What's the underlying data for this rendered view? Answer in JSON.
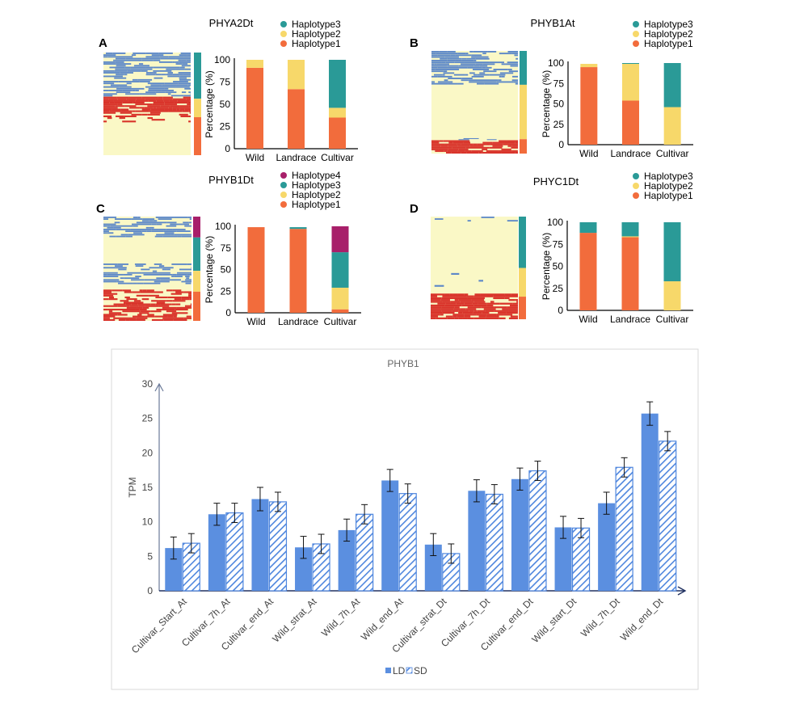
{
  "colors": {
    "haplotype1": "#f26c3c",
    "haplotype2": "#f7d86a",
    "haplotype3": "#2a9a97",
    "haplotype4": "#a81f6a",
    "heat_bg": "#faf8c6",
    "heat_blue": "#5b87c8",
    "heat_red": "#d9342b",
    "ld": "#5b8fe0",
    "sd_stroke": "#4e86de"
  },
  "chart_data": [
    {
      "panel": "A",
      "type": "bar",
      "title": "PHYA2Dt",
      "ylabel": "Percentage (%)",
      "ylim": [
        0,
        100
      ],
      "yticks": [
        0,
        25,
        50,
        75,
        100
      ],
      "categories": [
        "Wild",
        "Landrace",
        "Cultivar"
      ],
      "legend": [
        "Haplotype3",
        "Haplotype2",
        "Haplotype1"
      ],
      "series": [
        {
          "name": "Haplotype1",
          "values": [
            91,
            67,
            35
          ]
        },
        {
          "name": "Haplotype2",
          "values": [
            9,
            33,
            11
          ]
        },
        {
          "name": "Haplotype3",
          "values": [
            0,
            0,
            54
          ]
        }
      ],
      "heat_side": [
        [
          "haplotype3",
          0.45
        ],
        [
          "haplotype2",
          0.18
        ],
        [
          "haplotype1",
          0.37
        ]
      ]
    },
    {
      "panel": "B",
      "type": "bar",
      "title": "PHYB1At",
      "ylabel": "Percentage (%)",
      "ylim": [
        0,
        100
      ],
      "yticks": [
        0,
        25,
        50,
        75,
        100
      ],
      "categories": [
        "Wild",
        "Landrace",
        "Cultivar"
      ],
      "legend": [
        "Haplotype3",
        "Haplotype2",
        "Haplotype1"
      ],
      "series": [
        {
          "name": "Haplotype1",
          "values": [
            95,
            54,
            0
          ]
        },
        {
          "name": "Haplotype2",
          "values": [
            4,
            45,
            46
          ]
        },
        {
          "name": "Haplotype3",
          "values": [
            0,
            1,
            54
          ]
        }
      ],
      "heat_side": [
        [
          "haplotype3",
          0.33
        ],
        [
          "haplotype2",
          0.53
        ],
        [
          "haplotype1",
          0.14
        ]
      ]
    },
    {
      "panel": "C",
      "type": "bar",
      "title": "PHYB1Dt",
      "ylabel": "Percentage (%)",
      "ylim": [
        0,
        100
      ],
      "yticks": [
        0,
        25,
        50,
        75,
        100
      ],
      "categories": [
        "Wild",
        "Landrace",
        "Cultivar"
      ],
      "legend": [
        "Haplotype4",
        "Haplotype3",
        "Haplotype2",
        "Haplotype1"
      ],
      "series": [
        {
          "name": "Haplotype1",
          "values": [
            99,
            97,
            4
          ]
        },
        {
          "name": "Haplotype2",
          "values": [
            0,
            0,
            25
          ]
        },
        {
          "name": "Haplotype3",
          "values": [
            0,
            2,
            41
          ]
        },
        {
          "name": "Haplotype4",
          "values": [
            0,
            0,
            30
          ]
        }
      ],
      "heat_side": [
        [
          "haplotype4",
          0.2
        ],
        [
          "haplotype3",
          0.32
        ],
        [
          "haplotype2",
          0.2
        ],
        [
          "haplotype1",
          0.28
        ]
      ]
    },
    {
      "panel": "D",
      "type": "bar",
      "title": "PHYC1Dt",
      "ylabel": "Percentage (%)",
      "ylim": [
        0,
        100
      ],
      "yticks": [
        0,
        25,
        50,
        75,
        100
      ],
      "categories": [
        "Wild",
        "Landrace",
        "Cultivar"
      ],
      "legend": [
        "Haplotype3",
        "Haplotype2",
        "Haplotype1"
      ],
      "series": [
        {
          "name": "Haplotype1",
          "values": [
            88,
            83,
            0
          ]
        },
        {
          "name": "Haplotype2",
          "values": [
            0,
            1,
            33
          ]
        },
        {
          "name": "Haplotype3",
          "values": [
            12,
            16,
            67
          ]
        }
      ],
      "heat_side": [
        [
          "haplotype3",
          0.5
        ],
        [
          "haplotype2",
          0.28
        ],
        [
          "haplotype1",
          0.22
        ]
      ]
    },
    {
      "type": "bar",
      "title": "PHYB1",
      "ylabel": "TPM",
      "ylim": [
        0,
        30
      ],
      "yticks": [
        0,
        5,
        10,
        15,
        20,
        25,
        30
      ],
      "categories": [
        "Cultivar_Start_At",
        "Cultivar_7h_At",
        "Cultivar_end_At",
        "Wild_strat_At",
        "Wild_7h_At",
        "Wild_end_At",
        "Cultivar_strat_Dt",
        "Cultivar_7h_Dt",
        "Cultivar_end_Dt",
        "Wild_start_Dt",
        "Wild_7h_Dt",
        "Wild_end_Dt"
      ],
      "legend_position": "bottom",
      "series": [
        {
          "name": "LD",
          "values": [
            6.2,
            11.1,
            13.3,
            6.3,
            8.8,
            16.0,
            6.7,
            14.5,
            16.2,
            9.2,
            12.7,
            25.7
          ],
          "errors": [
            1.6,
            1.6,
            1.7,
            1.6,
            1.6,
            1.6,
            1.6,
            1.6,
            1.6,
            1.6,
            1.6,
            1.7
          ]
        },
        {
          "name": "SD",
          "values": [
            6.9,
            11.3,
            12.9,
            6.8,
            11.1,
            14.1,
            5.4,
            14.0,
            17.4,
            9.1,
            17.9,
            21.7
          ],
          "errors": [
            1.4,
            1.4,
            1.4,
            1.4,
            1.4,
            1.4,
            1.4,
            1.4,
            1.4,
            1.4,
            1.4,
            1.4
          ]
        }
      ]
    }
  ]
}
